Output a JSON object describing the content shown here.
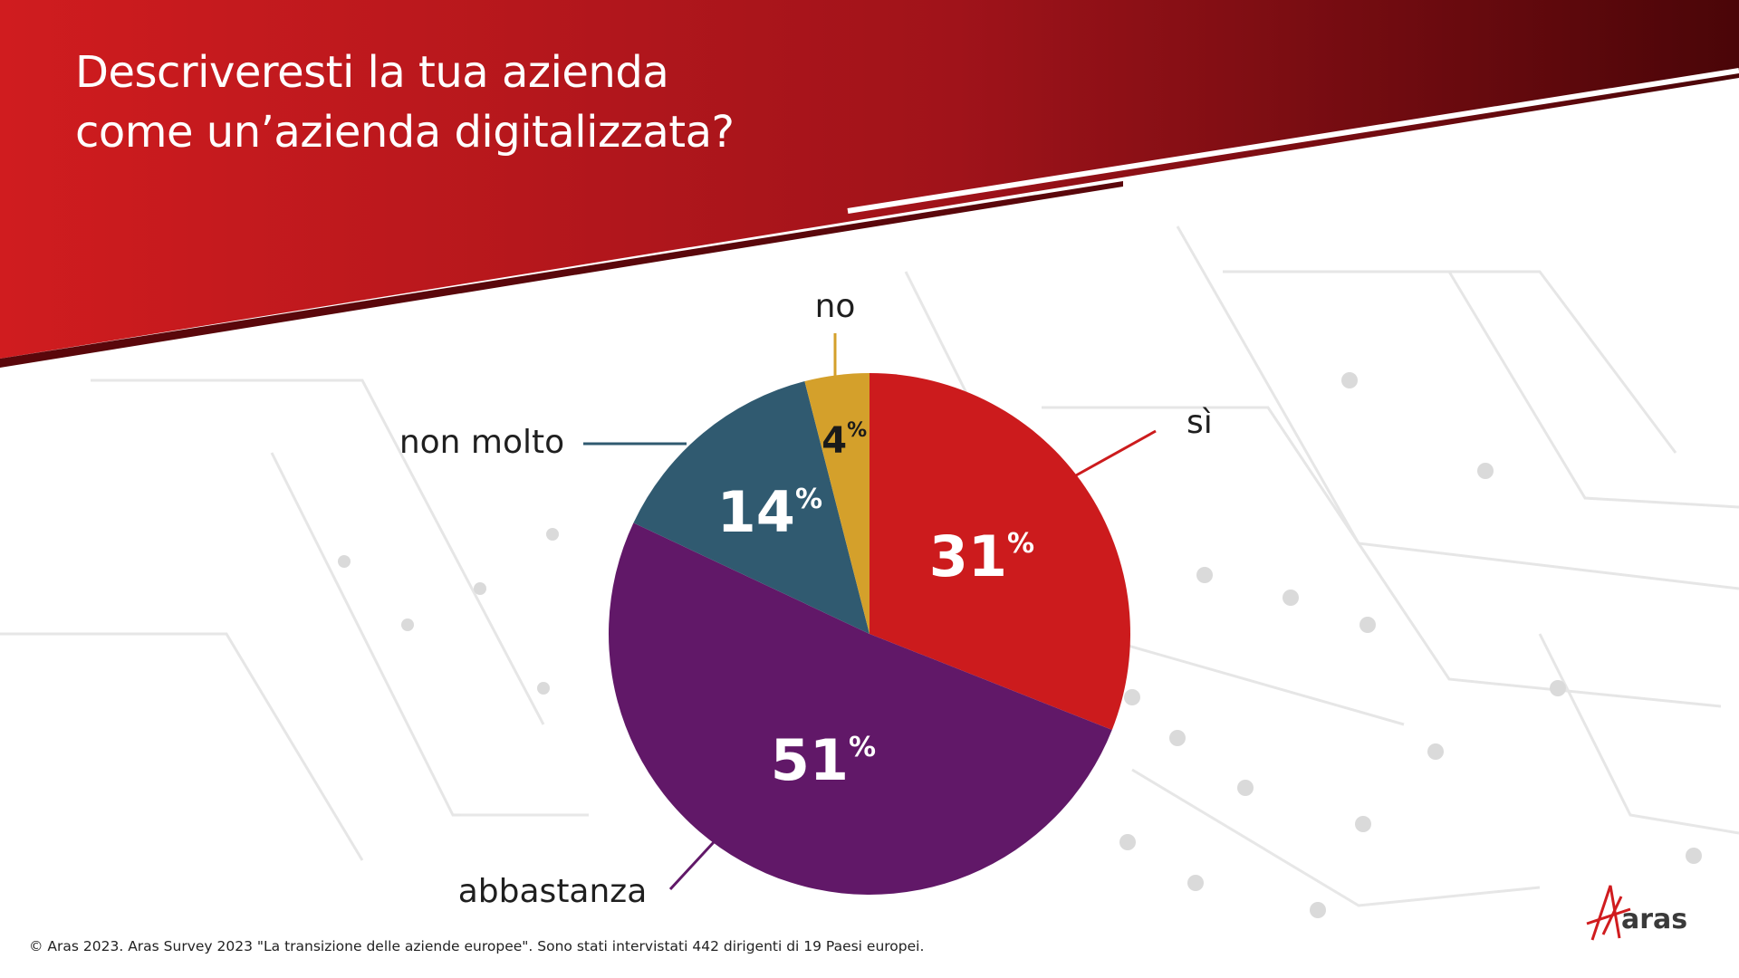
{
  "title_lines": [
    "Descriveresti la tua azienda",
    "come un’azienda digitalizzata?"
  ],
  "chart_data": {
    "type": "pie",
    "title": "Descriveresti la tua azienda come un’azienda digitalizzata?",
    "slices": [
      {
        "label": "sì",
        "value": 31,
        "value_label": "31",
        "color": "#cc1b1d"
      },
      {
        "label": "abbastanza",
        "value": 51,
        "value_label": "51",
        "color": "#611868"
      },
      {
        "label": "non molto",
        "value": 14,
        "value_label": "14",
        "color": "#305a70"
      },
      {
        "label": "no",
        "value": 4,
        "value_label": "4",
        "color": "#d4a02b"
      }
    ],
    "unit": "%",
    "start": "12 o'clock, clockwise",
    "legend": "none (callout labels)"
  },
  "footer": "© Aras 2023. Aras Survey 2023 \"La transizione delle aziende europee\". Sono stati intervistati 442 dirigenti di 19 Paesi europei.",
  "logo": "aras",
  "colors": {
    "banner_dark": "#4a0508",
    "banner_red": "#d01c1f",
    "label_text": "#1f1f1f"
  }
}
